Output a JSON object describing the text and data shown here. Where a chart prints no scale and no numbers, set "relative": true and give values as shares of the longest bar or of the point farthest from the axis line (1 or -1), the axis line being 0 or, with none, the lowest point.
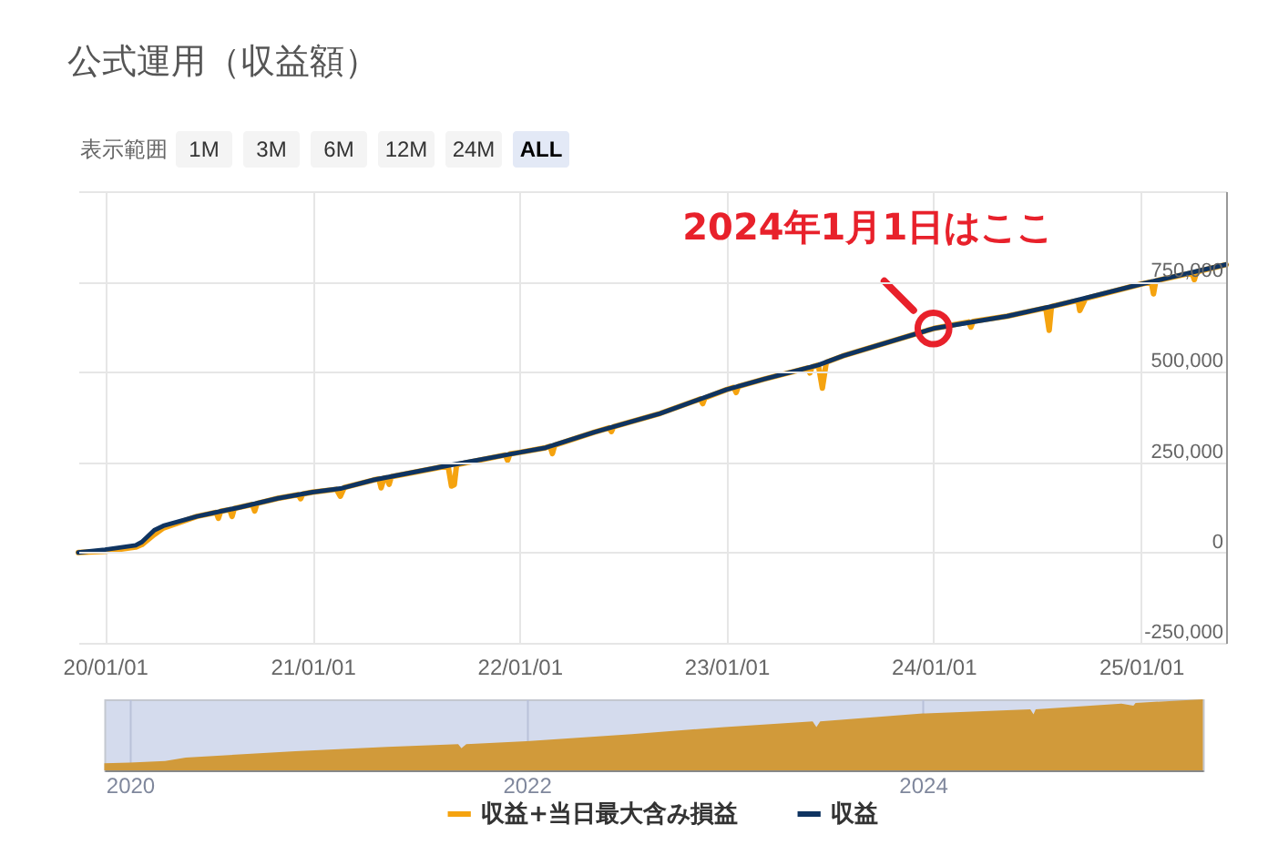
{
  "chart_data": [
    {
      "type": "line",
      "title": "公式運用（収益額）",
      "annotations": [
        "表示範囲",
        "1M",
        "3M",
        "6M",
        "12M",
        "24M",
        "ALL",
        {
          "text": "2024年1月1日はここ",
          "x": "2024-01-01",
          "y": 620000
        }
      ],
      "xlim": [
        "2019-11-15",
        "2025-05-31"
      ],
      "xticks": [
        {
          "value": "2020-01-01",
          "label": "20/01/01"
        },
        {
          "value": "2021-01-01",
          "label": "21/01/01"
        },
        {
          "value": "2022-01-01",
          "label": "22/01/01"
        },
        {
          "value": "2023-01-01",
          "label": "23/01/01"
        },
        {
          "value": "2024-01-01",
          "label": "24/01/01"
        },
        {
          "value": "2025-01-01",
          "label": "25/01/01"
        }
      ],
      "ylim": [
        -250000,
        1000000
      ],
      "yticks": [
        {
          "value": -250000,
          "label": "-250,000"
        },
        0,
        {
          "value": 250000,
          "label": "250,000"
        },
        {
          "value": 500000,
          "label": "500,000"
        },
        {
          "value": 750000,
          "label": "750,000"
        },
        {
          "value": 1000000,
          "label": null
        }
      ],
      "grid": true,
      "legend": "bottom",
      "series": [
        {
          "name": "収益+当日最大含み損益",
          "color": "#f5a30f",
          "x": [
            "2019-11-15",
            "2020-01-01",
            "2020-02-24",
            "2020-03-06",
            "2020-03-28",
            "2020-04-13",
            "2020-06-11",
            "2020-07-15",
            "2020-07-19",
            "2020-07-23",
            "2020-08-08",
            "2020-08-12",
            "2020-08-16",
            "2020-09-17",
            "2020-09-21",
            "2020-09-25",
            "2020-11-01",
            "2020-12-07",
            "2020-12-11",
            "2020-12-15",
            "2021-01-01",
            "2021-02-12",
            "2021-02-19",
            "2021-02-26",
            "2021-04-19",
            "2021-04-28",
            "2021-05-02",
            "2021-05-07",
            "2021-05-12",
            "2021-05-16",
            "2021-05-20",
            "2021-08-28",
            "2021-09-03",
            "2021-09-08",
            "2021-09-12",
            "2021-12-07",
            "2021-12-11",
            "2021-12-15",
            "2022-01-01",
            "2022-02-16",
            "2022-02-24",
            "2022-02-28",
            "2022-03-04",
            "2022-05-13",
            "2022-06-08",
            "2022-06-12",
            "2022-06-16",
            "2022-07-14",
            "2022-09-06",
            "2022-11-16",
            "2022-11-20",
            "2022-11-24",
            "2023-01-01",
            "2023-01-14",
            "2023-01-18",
            "2023-01-22",
            "2023-03-08",
            "2023-05-24",
            "2023-05-28",
            "2023-06-01",
            "2023-06-12",
            "2023-06-19",
            "2023-06-26",
            "2023-07-25",
            "2024-01-01",
            "2024-03-03",
            "2024-03-07",
            "2024-03-11",
            "2024-05-10",
            "2024-07-17",
            "2024-07-23",
            "2024-07-27",
            "2024-08-04",
            "2024-09-12",
            "2024-09-15",
            "2024-09-25",
            "2025-01-01",
            "2025-01-19",
            "2025-01-23",
            "2025-01-27",
            "2025-04-01",
            "2025-04-05",
            "2025-04-09",
            "2025-05-31"
          ],
          "values": [
            0,
            3000,
            15000,
            22000,
            50000,
            68000,
            100000,
            111000,
            95000,
            114000,
            119000,
            100000,
            122000,
            133000,
            115000,
            136000,
            150000,
            160000,
            149000,
            162000,
            167000,
            175000,
            156000,
            180000,
            201000,
            204000,
            179000,
            206000,
            207000,
            189000,
            210000,
            240000,
            184000,
            188000,
            243000,
            270000,
            255000,
            273000,
            277000,
            290000,
            294000,
            274000,
            297000,
            333000,
            345000,
            335000,
            348000,
            361000,
            385000,
            425000,
            412000,
            428000,
            451000,
            457000,
            443000,
            460000,
            480000,
            511000,
            497000,
            514000,
            519000,
            455000,
            527000,
            544000,
            620000,
            638000,
            624000,
            640000,
            654000,
            677000,
            615000,
            681000,
            684000,
            698000,
            670000,
            703000,
            743000,
            749000,
            716000,
            752000,
            774000,
            755000,
            777000,
            797000
          ]
        },
        {
          "name": "収益",
          "color": "#0f3461",
          "x": [
            "2019-11-15",
            "2020-01-01",
            "2020-02-24",
            "2020-03-06",
            "2020-03-28",
            "2020-04-13",
            "2020-06-11",
            "2020-08-25",
            "2020-11-01",
            "2021-01-01",
            "2021-02-19",
            "2021-04-19",
            "2021-08-26",
            "2022-01-01",
            "2022-02-16",
            "2022-05-13",
            "2022-07-14",
            "2022-09-06",
            "2023-01-01",
            "2023-03-08",
            "2023-06-12",
            "2023-07-25",
            "2024-01-01",
            "2024-05-10",
            "2024-08-04",
            "2025-01-01",
            "2025-05-31"
          ],
          "values": [
            0,
            8000,
            20000,
            29000,
            62000,
            74000,
            100000,
            125000,
            150000,
            167000,
            177000,
            201000,
            240000,
            277000,
            290000,
            333000,
            361000,
            385000,
            451000,
            480000,
            519000,
            544000,
            620000,
            654000,
            684000,
            743000,
            797000
          ]
        }
      ]
    },
    {
      "type": "area",
      "relative": true,
      "color": "#d19a3a",
      "x": [
        "2019-11-15",
        "2020-01-01",
        "2020-03-06",
        "2020-04-13",
        "2020-11-01",
        "2021-04-19",
        "2021-08-28",
        "2021-09-03",
        "2021-09-12",
        "2022-01-01",
        "2022-07-14",
        "2023-01-01",
        "2023-06-12",
        "2023-06-19",
        "2023-06-26",
        "2024-01-01",
        "2024-07-17",
        "2024-07-23",
        "2024-07-27",
        "2025-01-01",
        "2025-01-23",
        "2025-01-27",
        "2025-05-31"
      ],
      "values": [
        0.1,
        0.11,
        0.13,
        0.18,
        0.27,
        0.33,
        0.37,
        0.31,
        0.37,
        0.41,
        0.51,
        0.61,
        0.69,
        0.61,
        0.69,
        0.8,
        0.86,
        0.79,
        0.86,
        0.94,
        0.91,
        0.95,
        1.0
      ],
      "xlim": [
        "2019-11-15",
        "2025-05-31"
      ],
      "xticks": [
        {
          "value": "2020-01-01",
          "label": "2020"
        },
        {
          "value": "2022-01-01",
          "label": "2022"
        },
        {
          "value": "2024-01-01",
          "label": "2024"
        }
      ],
      "grid": "x"
    }
  ]
}
